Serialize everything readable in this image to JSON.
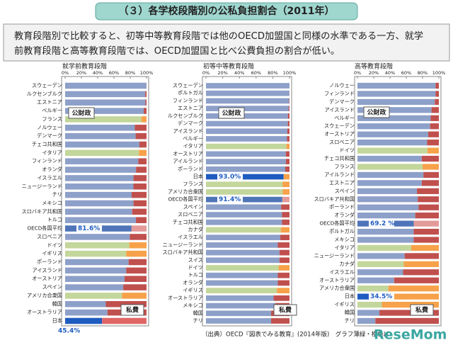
{
  "header": {
    "title": "（３）各学校段階別の公私負担割合（2011年）"
  },
  "summary": [
    "教育段階別で比較すると、初等中等教育段階では他のOECD加盟国と同様の水準である一方、就学",
    "前教育段階と高等教育段階では、OECD加盟国と比べ公費負担の割合が低い。"
  ],
  "chart_data": [
    {
      "type": "bar",
      "orientation": "horizontal",
      "stacked": true,
      "title": "就学前教育段階",
      "categories": [
        "スウェーデン",
        "ルクセンブルク",
        "エストニア",
        "ベルギー",
        "フランス",
        "ノルウェー",
        "デンマーク",
        "チェコ共和国",
        "イタリア",
        "フィンランド",
        "オランダ",
        "イスラエル",
        "ニュージーランド",
        "チリ",
        "メキシコ",
        "スロバキア共和国",
        "トルコ",
        "OECD各国平均",
        "スロベニア",
        "ドイツ",
        "イギリス",
        "ポーランド",
        "アイスランド",
        "オーストリア",
        "スペイン",
        "アメリカ合衆国",
        "韓国",
        "オーストラリア",
        "日本"
      ],
      "series": [
        {
          "name": "公財政",
          "color": "#8da0c9",
          "colors": [
            "#8da0c9",
            "#8da0c9",
            "#8da0c9",
            "#8da0c9",
            "#c3d69b",
            "#8da0c9",
            "#8da0c9",
            "#8da0c9",
            "#c3d69b",
            "#8da0c9",
            "#8da0c9",
            "#8da0c9",
            "#8da0c9",
            "#8da0c9",
            "#8da0c9",
            "#8da0c9",
            "#8da0c9",
            "#4f74b8",
            "#8da0c9",
            "#c3d69b",
            "#c3d69b",
            "#8da0c9",
            "#8da0c9",
            "#8da0c9",
            "#8da0c9",
            "#c3d69b",
            "#8da0c9",
            "#8da0c9",
            "#1f5cc0"
          ],
          "values": [
            99.9,
            98.4,
            98.6,
            96.6,
            93.7,
            85.6,
            86.6,
            91.2,
            90.6,
            89.9,
            87.1,
            84,
            83.9,
            81.7,
            84,
            82.4,
            87,
            81.6,
            79.4,
            78.9,
            75,
            78,
            75,
            73,
            71.4,
            70,
            50,
            52,
            45.4
          ],
          "value_labels": [
            null,
            null,
            null,
            null,
            null,
            null,
            null,
            null,
            null,
            null,
            null,
            null,
            null,
            null,
            null,
            null,
            null,
            "81.6%",
            null,
            null,
            null,
            null,
            null,
            null,
            null,
            null,
            null,
            null,
            "45.4%"
          ]
        },
        {
          "name": "私費",
          "color": "#c0504d",
          "colors": [
            "#c0504d",
            "#c0504d",
            "#c0504d",
            "#c0504d",
            "#f7a24a",
            "#c0504d",
            "#c0504d",
            "#c0504d",
            "#f7a24a",
            "#c0504d",
            "#c0504d",
            "#c0504d",
            "#c0504d",
            "#c0504d",
            "#c0504d",
            "#c0504d",
            "#c0504d",
            "#e39b99",
            "#c0504d",
            "#f7a24a",
            "#f7a24a",
            "#c0504d",
            "#c0504d",
            "#c0504d",
            "#c0504d",
            "#f7a24a",
            "#c0504d",
            "#c0504d",
            "#e06666"
          ],
          "values": [
            0.1,
            1.6,
            1.4,
            3.4,
            6.3,
            14.4,
            13.4,
            8.8,
            9.4,
            10.1,
            12.9,
            16,
            16.1,
            18.3,
            16,
            17.6,
            13,
            18.4,
            20.6,
            21.1,
            25,
            22,
            25,
            27,
            28.6,
            30,
            50,
            48,
            54.6
          ]
        }
      ],
      "xlim": [
        0,
        100
      ],
      "xticks": [
        {
          "value": 0,
          "label": "0%"
        },
        {
          "value": 20,
          "label": "20%"
        },
        {
          "value": 40,
          "label": "40%"
        },
        {
          "value": 60,
          "label": "60%"
        },
        {
          "value": 80,
          "label": "80%"
        },
        {
          "value": 100,
          "label": "100%"
        }
      ]
    },
    {
      "type": "bar",
      "orientation": "horizontal",
      "stacked": true,
      "title": "初等中等教育段階",
      "categories": [
        "スウェーデン",
        "ポルトガル",
        "フィンランド",
        "エストニア",
        "ルクセンブルク",
        "デンマーク",
        "アイスランド",
        "ベルギー",
        "イタリア",
        "オーストリア",
        "アイルランド",
        "ポーランド",
        "日本",
        "フランス",
        "アメリカ合衆国",
        "OECD各国平均",
        "スペイン",
        "スロベニア",
        "チェコ共和国",
        "カナダ",
        "イスラエル",
        "ニュージーランド",
        "スロバキア共和国",
        "スイス",
        "ドイツ",
        "トルコ",
        "オランダ",
        "イギリス",
        "オーストラリア",
        "メキシコ",
        "韓国",
        "チリ"
      ],
      "series": [
        {
          "name": "公財政",
          "color": "#8da0c9",
          "colors": [
            "#8da0c9",
            "#8da0c9",
            "#8da0c9",
            "#8da0c9",
            "#8da0c9",
            "#8da0c9",
            "#8da0c9",
            "#8da0c9",
            "#c3d69b",
            "#8da0c9",
            "#8da0c9",
            "#8da0c9",
            "#1f5cc0",
            "#c3d69b",
            "#c3d69b",
            "#4f74b8",
            "#8da0c9",
            "#8da0c9",
            "#8da0c9",
            "#c3d69b",
            "#8da0c9",
            "#8da0c9",
            "#8da0c9",
            "#8da0c9",
            "#c3d69b",
            "#8da0c9",
            "#8da0c9",
            "#c3d69b",
            "#8da0c9",
            "#8da0c9",
            "#8da0c9",
            "#8da0c9"
          ],
          "values": [
            100,
            99.9,
            99.5,
            99,
            98.1,
            98,
            97.4,
            97,
            96.4,
            95.6,
            95.6,
            94.9,
            93.0,
            91.6,
            91.9,
            91.4,
            90,
            91,
            91,
            89.6,
            89,
            86,
            88,
            88,
            87,
            86,
            86,
            85,
            81,
            83,
            78,
            78
          ],
          "value_labels": [
            null,
            null,
            null,
            null,
            null,
            null,
            null,
            null,
            null,
            null,
            null,
            null,
            "93.0%",
            null,
            null,
            "91.4%",
            null,
            null,
            null,
            null,
            null,
            null,
            null,
            null,
            null,
            null,
            null,
            null,
            null,
            null,
            null,
            null
          ]
        },
        {
          "name": "私費",
          "color": "#c0504d",
          "colors": [
            "#c0504d",
            "#c0504d",
            "#c0504d",
            "#c0504d",
            "#c0504d",
            "#c0504d",
            "#c0504d",
            "#c0504d",
            "#f7a24a",
            "#c0504d",
            "#c0504d",
            "#c0504d",
            "#f7a24a",
            "#f7a24a",
            "#f7a24a",
            "#e39b99",
            "#c0504d",
            "#c0504d",
            "#c0504d",
            "#f7a24a",
            "#c0504d",
            "#c0504d",
            "#c0504d",
            "#c0504d",
            "#f7a24a",
            "#c0504d",
            "#c0504d",
            "#f7a24a",
            "#c0504d",
            "#c0504d",
            "#c0504d",
            "#c0504d"
          ],
          "values": [
            0,
            0.1,
            0.5,
            1,
            1.9,
            2,
            2.6,
            3,
            3.6,
            4.4,
            4.4,
            5.1,
            7,
            8.4,
            8.1,
            8.6,
            10,
            9,
            9,
            10.4,
            11,
            14,
            12,
            12,
            13,
            14,
            14,
            15,
            19,
            17,
            22,
            22
          ]
        }
      ],
      "xlim": [
        0,
        100
      ],
      "xticks": [
        {
          "value": 0,
          "label": "0%"
        },
        {
          "value": 20,
          "label": "20%"
        },
        {
          "value": 40,
          "label": "40%"
        },
        {
          "value": 60,
          "label": "60%"
        },
        {
          "value": 80,
          "label": "80%"
        },
        {
          "value": 100,
          "label": "100%"
        }
      ]
    },
    {
      "type": "bar",
      "orientation": "horizontal",
      "stacked": true,
      "title": "高等教育段階",
      "categories": [
        "ノルウェー",
        "フィンランド",
        "デンマーク",
        "アイスランド",
        "ベルギー",
        "スウェーデン",
        "オーストリア",
        "スロベニア",
        "ドイツ",
        "チェコ共和国",
        "フランス",
        "アイルランド",
        "エストニア",
        "スペイン",
        "スロバキア共和国",
        "ポーランド",
        "オランダ",
        "OECD各国平均",
        "ポルトガル",
        "メキシコ",
        "イタリア",
        "ニュージーランド",
        "カナダ",
        "イスラエル",
        "オーストラリア",
        "アメリカ合衆国",
        "日本",
        "イギリス",
        "韓国",
        "チリ"
      ],
      "series": [
        {
          "name": "公財政",
          "color": "#8da0c9",
          "colors": [
            "#8da0c9",
            "#8da0c9",
            "#8da0c9",
            "#8da0c9",
            "#8da0c9",
            "#8da0c9",
            "#8da0c9",
            "#8da0c9",
            "#c3d69b",
            "#8da0c9",
            "#c3d69b",
            "#8da0c9",
            "#8da0c9",
            "#8da0c9",
            "#8da0c9",
            "#8da0c9",
            "#8da0c9",
            "#4f74b8",
            "#8da0c9",
            "#8da0c9",
            "#c3d69b",
            "#8da0c9",
            "#c3d69b",
            "#8da0c9",
            "#8da0c9",
            "#c3d69b",
            "#1f5cc0",
            "#c3d69b",
            "#8da0c9",
            "#8da0c9"
          ],
          "values": [
            96,
            96,
            95,
            91,
            90,
            89.3,
            87,
            85.6,
            86,
            79,
            80,
            81,
            79,
            73.1,
            74,
            75,
            71,
            69.2,
            69,
            69,
            66,
            58,
            57,
            56,
            45,
            38,
            34.5,
            30,
            27,
            22
          ],
          "value_labels": [
            null,
            null,
            null,
            null,
            null,
            null,
            null,
            null,
            null,
            null,
            null,
            null,
            null,
            null,
            null,
            null,
            null,
            "69.2 %",
            null,
            null,
            null,
            null,
            null,
            null,
            null,
            null,
            "34.5%",
            null,
            null,
            null
          ]
        },
        {
          "name": "私費",
          "color": "#c0504d",
          "colors": [
            "#c0504d",
            "#c0504d",
            "#c0504d",
            "#c0504d",
            "#c0504d",
            "#c0504d",
            "#c0504d",
            "#c0504d",
            "#f7a24a",
            "#c0504d",
            "#f7a24a",
            "#c0504d",
            "#c0504d",
            "#c0504d",
            "#c0504d",
            "#c0504d",
            "#c0504d",
            "#e39b99",
            "#c0504d",
            "#c0504d",
            "#f7a24a",
            "#c0504d",
            "#f7a24a",
            "#c0504d",
            "#c0504d",
            "#f7a24a",
            "#f7a24a",
            "#f7a24a",
            "#c0504d",
            "#c0504d"
          ],
          "values": [
            4,
            4,
            5,
            9,
            10,
            10.7,
            13,
            14.4,
            14,
            21,
            20,
            19,
            21,
            26.9,
            26,
            25,
            29,
            30.8,
            31,
            31,
            34,
            42,
            43,
            44,
            55,
            62,
            65.5,
            70,
            73,
            78
          ]
        }
      ],
      "xlim": [
        0,
        100
      ],
      "xticks": [
        {
          "value": 0,
          "label": "0%"
        },
        {
          "value": 20,
          "label": "20%"
        },
        {
          "value": 40,
          "label": "40%"
        },
        {
          "value": 60,
          "label": "60%"
        },
        {
          "value": 80,
          "label": "80%"
        },
        {
          "value": 100,
          "label": "100%"
        }
      ]
    }
  ],
  "source": "（出典）OECD『図表でみる教育』(2014年版)　グラフ薄緑・橙色は",
  "watermark": "ReseMom"
}
